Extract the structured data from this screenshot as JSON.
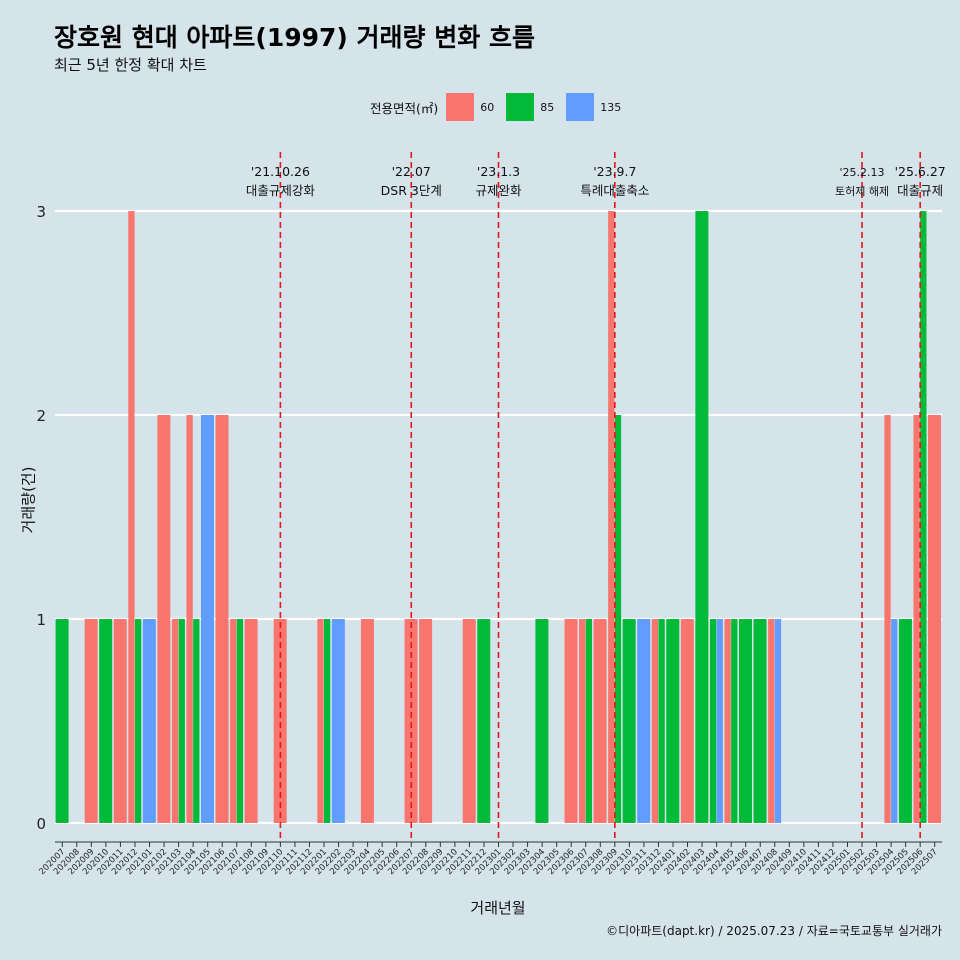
{
  "title": "장호원 현대 아파트(1997) 거래량 변화 흐름",
  "subtitle": "최근 5년 한정 확대 차트",
  "footer": "©디아파트(dapt.kr) / 2025.07.23 / 자료=국토교통부 실거래가",
  "legend": {
    "title": "전용면적(㎡)",
    "items": [
      {
        "label": "60",
        "color": "#f8766d"
      },
      {
        "label": "85",
        "color": "#00ba38"
      },
      {
        "label": "135",
        "color": "#619cff"
      }
    ]
  },
  "chart_data": {
    "type": "bar",
    "xlabel": "거래년월",
    "ylabel": "거래량(건)",
    "ylim": [
      0,
      3
    ],
    "yticks": [
      0,
      1,
      2,
      3
    ],
    "grid": true,
    "legend_position": "top",
    "categories": [
      "202007",
      "202008",
      "202009",
      "202010",
      "202011",
      "202012",
      "202101",
      "202102",
      "202103",
      "202104",
      "202105",
      "202106",
      "202107",
      "202108",
      "202109",
      "202110",
      "202111",
      "202112",
      "202201",
      "202202",
      "202203",
      "202204",
      "202205",
      "202206",
      "202207",
      "202208",
      "202209",
      "202210",
      "202211",
      "202212",
      "202301",
      "202302",
      "202303",
      "202304",
      "202305",
      "202306",
      "202307",
      "202308",
      "202309",
      "202310",
      "202311",
      "202312",
      "202401",
      "202402",
      "202403",
      "202404",
      "202405",
      "202406",
      "202407",
      "202408",
      "202409",
      "202410",
      "202411",
      "202412",
      "202501",
      "202502",
      "202503",
      "202504",
      "202505",
      "202506",
      "202507"
    ],
    "series": [
      {
        "name": "60",
        "color": "#f8766d",
        "values": [
          0,
          0,
          1,
          0,
          1,
          3,
          0,
          2,
          1,
          2,
          0,
          2,
          1,
          1,
          0,
          1,
          0,
          0,
          1,
          0,
          0,
          1,
          0,
          0,
          1,
          1,
          0,
          0,
          1,
          0,
          0,
          0,
          0,
          0,
          0,
          1,
          1,
          1,
          3,
          0,
          0,
          1,
          0,
          1,
          0,
          0,
          1,
          0,
          0,
          1,
          0,
          0,
          0,
          0,
          0,
          0,
          0,
          2,
          0,
          2,
          2
        ]
      },
      {
        "name": "85",
        "color": "#00ba38",
        "values": [
          1,
          0,
          0,
          1,
          0,
          1,
          0,
          0,
          1,
          1,
          0,
          0,
          1,
          0,
          0,
          0,
          0,
          0,
          1,
          0,
          0,
          0,
          0,
          0,
          0,
          0,
          0,
          0,
          0,
          1,
          0,
          0,
          0,
          1,
          0,
          0,
          1,
          0,
          2,
          1,
          0,
          1,
          1,
          0,
          3,
          1,
          1,
          1,
          1,
          0,
          0,
          0,
          0,
          0,
          0,
          0,
          0,
          0,
          1,
          3,
          0
        ]
      },
      {
        "name": "135",
        "color": "#619cff",
        "values": [
          0,
          0,
          0,
          0,
          0,
          0,
          1,
          0,
          0,
          0,
          2,
          0,
          0,
          0,
          0,
          0,
          0,
          0,
          0,
          1,
          0,
          0,
          0,
          0,
          0,
          0,
          0,
          0,
          0,
          0,
          0,
          0,
          0,
          0,
          0,
          0,
          0,
          0,
          0,
          0,
          1,
          0,
          0,
          0,
          0,
          1,
          0,
          0,
          0,
          1,
          0,
          0,
          0,
          0,
          0,
          0,
          0,
          1,
          0,
          0,
          0
        ]
      }
    ],
    "annotations": [
      {
        "x": "202110",
        "date": "'21.10.26",
        "label": "대출규제강화"
      },
      {
        "x": "202207",
        "date": "'22.07",
        "label": "DSR 3단계"
      },
      {
        "x": "202301",
        "date": "'23.1.3",
        "label": "규제완화"
      },
      {
        "x": "202309",
        "date": "'23.9.7",
        "label": "특례대출축소"
      },
      {
        "x": "202502",
        "date": "'25.2.13",
        "label": "토허제 해제"
      },
      {
        "x": "202506",
        "date": "'25.6.27",
        "label": "대출규제"
      }
    ]
  }
}
